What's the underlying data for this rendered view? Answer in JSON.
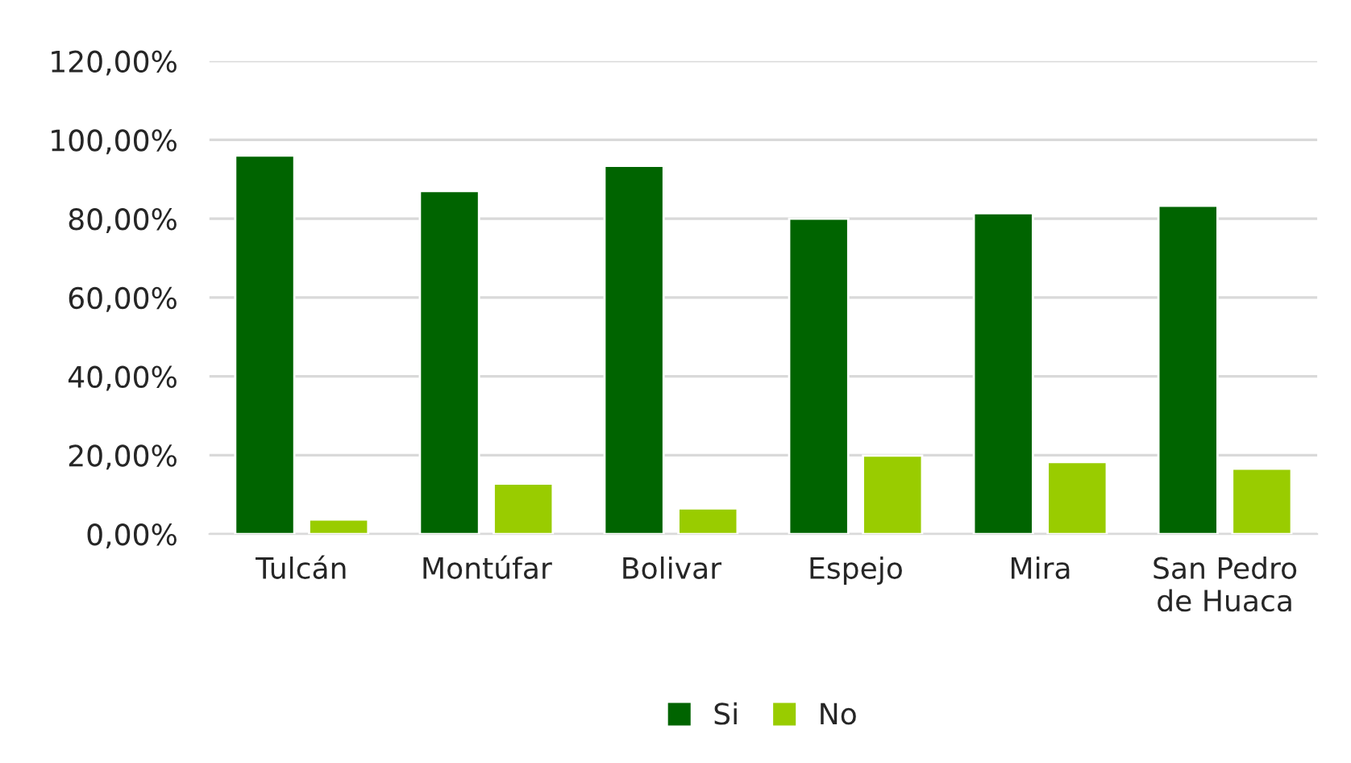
{
  "chart_data": {
    "type": "bar",
    "categories": [
      "Tulcán",
      "Montúfar",
      "Bolivar",
      "Espejo",
      "Mira",
      "San Pedro de Huaca"
    ],
    "series": [
      {
        "name": "Si",
        "color": "#006400",
        "values": [
          96.0,
          87.0,
          93.4,
          80.0,
          81.4,
          83.3
        ]
      },
      {
        "name": "No",
        "color": "#99cc00",
        "values": [
          3.7,
          12.8,
          6.5,
          19.9,
          18.3,
          16.6
        ]
      }
    ],
    "ylim": [
      0,
      120
    ],
    "yticks": [
      {
        "value": 0,
        "label": "0,00%"
      },
      {
        "value": 20,
        "label": "20,00%"
      },
      {
        "value": 40,
        "label": "40,00%"
      },
      {
        "value": 60,
        "label": "60,00%"
      },
      {
        "value": 80,
        "label": "80,00%"
      },
      {
        "value": 100,
        "label": "100,00%"
      },
      {
        "value": 120,
        "label": "120,00%"
      }
    ],
    "grid": "y",
    "legend": "bottom"
  }
}
